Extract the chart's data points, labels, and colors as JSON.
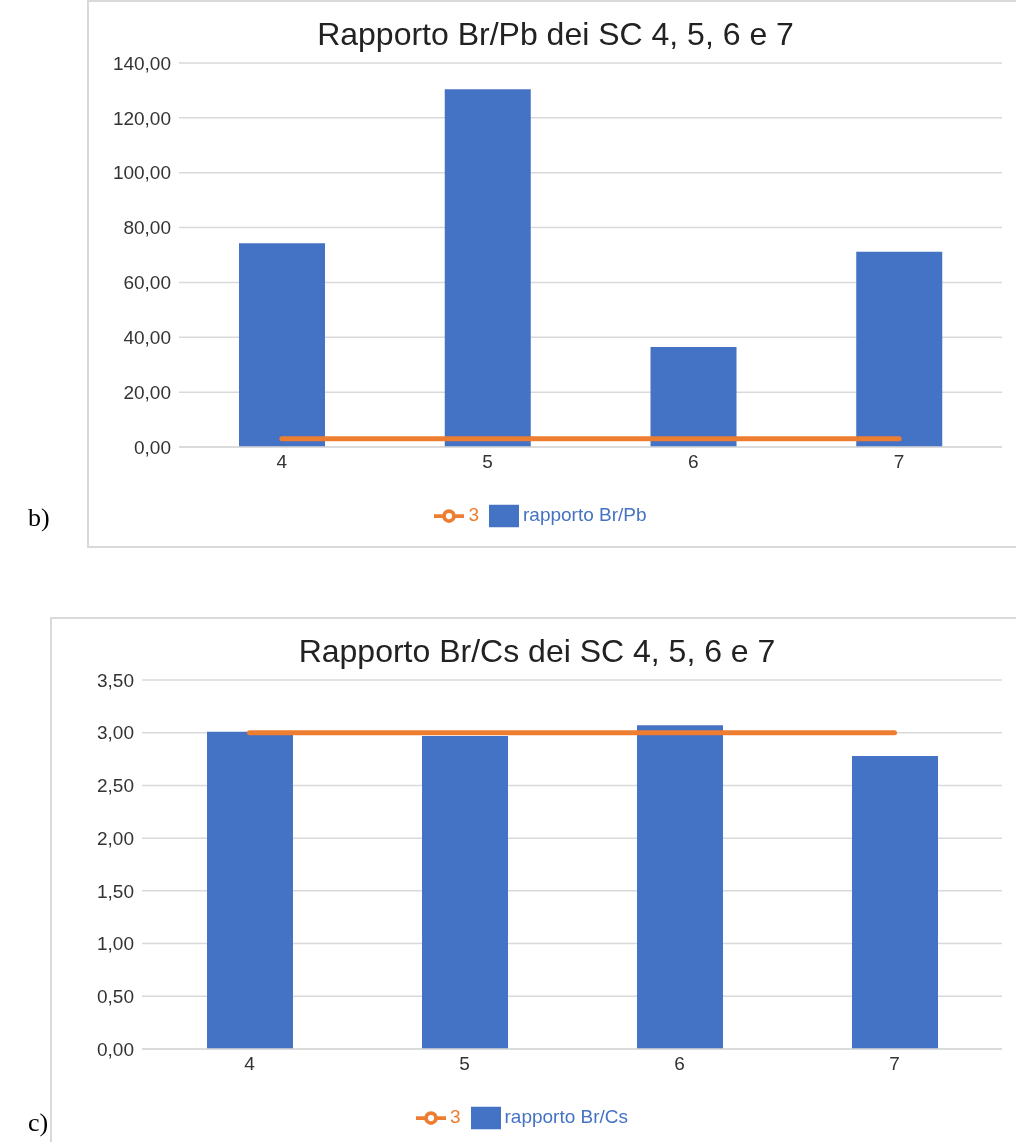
{
  "chart_data": [
    {
      "type": "bar",
      "title": "Rapporto Br/Pb dei SC 4, 5, 6 e 7",
      "categories": [
        "4",
        "5",
        "6",
        "7"
      ],
      "series": [
        {
          "name": "rapporto Br/Pb",
          "color": "#4472c4",
          "values": [
            74.3,
            130.4,
            36.5,
            71.2
          ]
        },
        {
          "name": "3",
          "type": "line",
          "color": "#ed7d31",
          "values": [
            3,
            3,
            3,
            3
          ]
        }
      ],
      "ylim": [
        0,
        140
      ],
      "yticks": [
        {
          "value": 0,
          "label": "0,00"
        },
        {
          "value": 20,
          "label": "20,00"
        },
        {
          "value": 40,
          "label": "40,00"
        },
        {
          "value": 60,
          "label": "60,00"
        },
        {
          "value": 80,
          "label": "80,00"
        },
        {
          "value": 100,
          "label": "100,00"
        },
        {
          "value": 120,
          "label": "120,00"
        },
        {
          "value": 140,
          "label": "140,00"
        }
      ],
      "grid": "y",
      "legend": "bottom",
      "marker": "none",
      "line_style": "solid",
      "annotations": [
        "b)"
      ]
    },
    {
      "type": "bar",
      "title": "Rapporto Br/Cs dei SC 4, 5, 6 e 7",
      "categories": [
        "4",
        "5",
        "6",
        "7"
      ],
      "series": [
        {
          "name": "rapporto Br/Cs",
          "color": "#4472c4",
          "values": [
            3.01,
            2.97,
            3.07,
            2.78
          ]
        },
        {
          "name": "3",
          "type": "line",
          "color": "#ed7d31",
          "values": [
            3,
            3,
            3,
            3
          ]
        }
      ],
      "ylim": [
        0,
        3.5
      ],
      "yticks": [
        {
          "value": 0,
          "label": "0,00"
        },
        {
          "value": 0.5,
          "label": "0,50"
        },
        {
          "value": 1,
          "label": "1,00"
        },
        {
          "value": 1.5,
          "label": "1,50"
        },
        {
          "value": 2,
          "label": "2,00"
        },
        {
          "value": 2.5,
          "label": "2,50"
        },
        {
          "value": 3,
          "label": "3,00"
        },
        {
          "value": 3.5,
          "label": "3,50"
        }
      ],
      "grid": "y",
      "legend": "bottom",
      "marker": "none",
      "line_style": "solid",
      "annotations": [
        "c)"
      ]
    }
  ]
}
